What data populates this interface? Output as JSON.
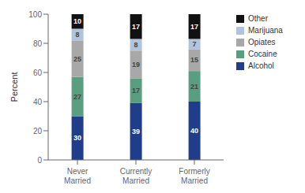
{
  "chart_data": {
    "type": "bar",
    "stacked": true,
    "data_labels": true,
    "ylabel": "Percent",
    "categories": [
      "Never\nMarried",
      "Currently\nMarried",
      "Formerly\nMarried"
    ],
    "series": [
      {
        "name": "Alcohol",
        "color": "#1f3d8a",
        "values": [
          30,
          39,
          40
        ]
      },
      {
        "name": "Cocaine",
        "color": "#5a9e82",
        "values": [
          27,
          17,
          21
        ]
      },
      {
        "name": "Opiates",
        "color": "#a8a8a8",
        "values": [
          25,
          19,
          15
        ]
      },
      {
        "name": "Marijuana",
        "color": "#b0c4de",
        "values": [
          8,
          8,
          7
        ]
      },
      {
        "name": "Other",
        "color": "#111111",
        "values": [
          10,
          17,
          17
        ]
      }
    ],
    "ylim": [
      0,
      100
    ],
    "yticks": [
      0,
      20,
      40,
      60,
      80,
      100
    ],
    "grid": false,
    "legend": "right"
  }
}
